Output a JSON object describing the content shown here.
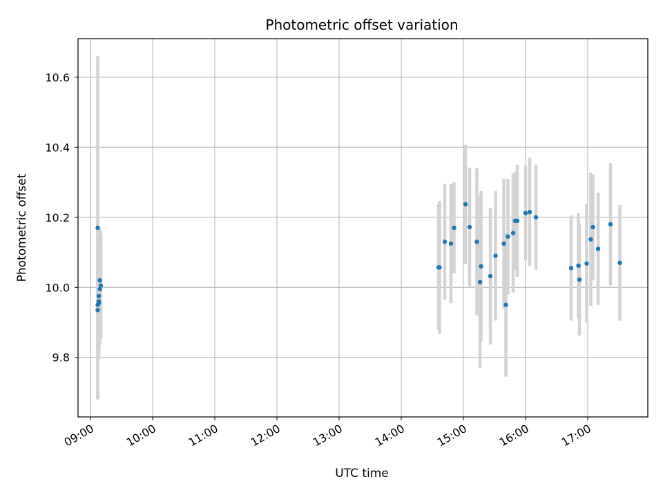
{
  "chart_data": {
    "type": "scatter",
    "title": "Photometric offset variation",
    "xlabel": "UTC time",
    "ylabel": "Photometric offset",
    "x_ticks": [
      "09:00",
      "10:00",
      "11:00",
      "12:00",
      "13:00",
      "14:00",
      "15:00",
      "16:00",
      "17:00"
    ],
    "y_ticks": [
      "9.8",
      "10.0",
      "10.2",
      "10.4",
      "10.6"
    ],
    "xlim": [
      "08:48",
      "17:58"
    ],
    "ylim": [
      9.63,
      10.71
    ],
    "grid": true,
    "marker_color": "#1f77b4",
    "errorbar_color": "#d3d3d3",
    "points": [
      {
        "x": "09:07",
        "y": 10.17,
        "err": 0.49
      },
      {
        "x": "09:07",
        "y": 9.935,
        "err": 0.255
      },
      {
        "x": "09:07",
        "y": 9.95,
        "err": 0.17
      },
      {
        "x": "09:08",
        "y": 9.955,
        "err": 0.16
      },
      {
        "x": "09:08",
        "y": 9.96,
        "err": 0.15
      },
      {
        "x": "09:08",
        "y": 9.975,
        "err": 0.16
      },
      {
        "x": "09:09",
        "y": 9.995,
        "err": 0.16
      },
      {
        "x": "09:09",
        "y": 10.02,
        "err": 0.15
      },
      {
        "x": "09:10",
        "y": 10.005,
        "err": 0.15
      },
      {
        "x": "14:36",
        "y": 10.057,
        "err": 0.18
      },
      {
        "x": "14:37",
        "y": 10.057,
        "err": 0.19
      },
      {
        "x": "14:42",
        "y": 10.13,
        "err": 0.165
      },
      {
        "x": "14:48",
        "y": 10.125,
        "err": 0.17
      },
      {
        "x": "14:51",
        "y": 10.17,
        "err": 0.13
      },
      {
        "x": "15:02",
        "y": 10.237,
        "err": 0.17
      },
      {
        "x": "15:06",
        "y": 10.172,
        "err": 0.17
      },
      {
        "x": "15:13",
        "y": 10.13,
        "err": 0.21
      },
      {
        "x": "15:16",
        "y": 10.015,
        "err": 0.245
      },
      {
        "x": "15:17",
        "y": 10.06,
        "err": 0.215
      },
      {
        "x": "15:26",
        "y": 10.032,
        "err": 0.195
      },
      {
        "x": "15:31",
        "y": 10.09,
        "err": 0.185
      },
      {
        "x": "15:39",
        "y": 10.125,
        "err": 0.185
      },
      {
        "x": "15:41",
        "y": 9.95,
        "err": 0.205
      },
      {
        "x": "15:43",
        "y": 10.145,
        "err": 0.165
      },
      {
        "x": "15:48",
        "y": 10.155,
        "err": 0.17
      },
      {
        "x": "15:50",
        "y": 10.19,
        "err": 0.14
      },
      {
        "x": "15:52",
        "y": 10.19,
        "err": 0.16
      },
      {
        "x": "16:00",
        "y": 10.212,
        "err": 0.135
      },
      {
        "x": "16:04",
        "y": 10.215,
        "err": 0.155
      },
      {
        "x": "16:10",
        "y": 10.2,
        "err": 0.15
      },
      {
        "x": "16:44",
        "y": 10.055,
        "err": 0.15
      },
      {
        "x": "16:51",
        "y": 10.062,
        "err": 0.15
      },
      {
        "x": "16:52",
        "y": 10.022,
        "err": 0.16
      },
      {
        "x": "16:59",
        "y": 10.068,
        "err": 0.17
      },
      {
        "x": "17:03",
        "y": 10.137,
        "err": 0.19
      },
      {
        "x": "17:05",
        "y": 10.172,
        "err": 0.15
      },
      {
        "x": "17:10",
        "y": 10.11,
        "err": 0.16
      },
      {
        "x": "17:22",
        "y": 10.18,
        "err": 0.175
      },
      {
        "x": "17:31",
        "y": 10.07,
        "err": 0.165
      }
    ]
  }
}
